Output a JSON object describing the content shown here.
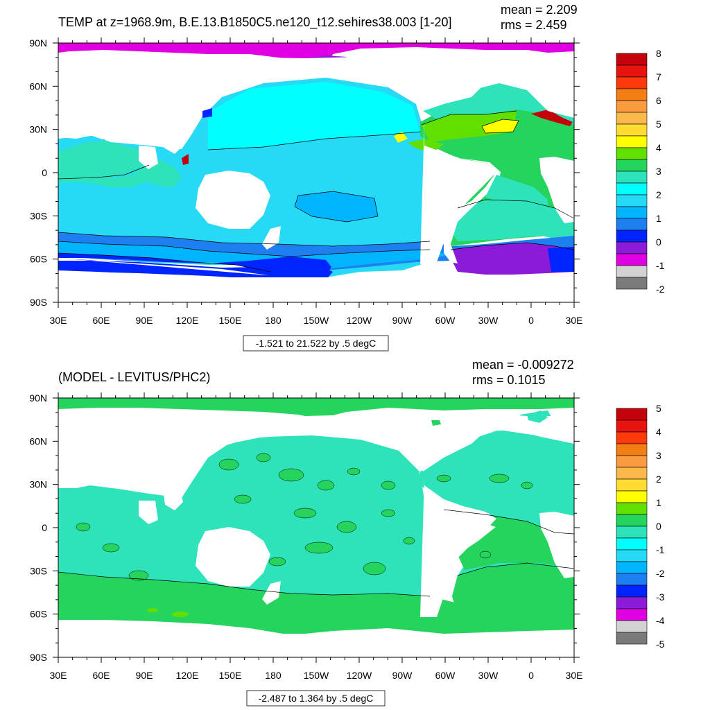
{
  "panels": [
    {
      "title": "TEMP at z=1968.9m, B.E.13.B1850C5.ne120_t12.sehires38.003 [1-20]",
      "mean_label": "mean = 2.209",
      "rms_label": "rms = 2.459",
      "contour_info": "-1.521 to 21.522 by .5 degC",
      "colorbar_labels": [
        "8",
        "7",
        "6",
        "5",
        "4",
        "3",
        "2",
        "1",
        "0",
        "-1",
        "-2"
      ],
      "colorbar_colors": [
        "#c4000a",
        "#e8130f",
        "#ff3a0a",
        "#f57e14",
        "#f99b3e",
        "#fbb94b",
        "#fedc32",
        "#ffff00",
        "#61e000",
        "#24d45c",
        "#2ee3b9",
        "#00ffff",
        "#26d9f5",
        "#00b4ff",
        "#1e80f0",
        "#0024ff",
        "#8c1ad9",
        "#e100e1",
        "#d2d2d2",
        "#7a7a7a"
      ]
    },
    {
      "title": "(MODEL - LEVITUS/PHC2)",
      "mean_label": "mean = -0.009272",
      "rms_label": "rms = 0.1015",
      "contour_info": "-2.487 to 1.364 by .5 degC",
      "colorbar_labels": [
        "5",
        "4",
        "3",
        "2",
        "1",
        "0",
        "-1",
        "-2",
        "-3",
        "-4",
        "-5"
      ],
      "colorbar_colors": [
        "#c4000a",
        "#e8130f",
        "#ff3a0a",
        "#f57e14",
        "#f99b3e",
        "#fbb94b",
        "#fedc32",
        "#ffff00",
        "#61e000",
        "#24d45c",
        "#2ee3b9",
        "#00ffff",
        "#26d9f5",
        "#00b4ff",
        "#1e80f0",
        "#0024ff",
        "#8c1ad9",
        "#e100e1",
        "#d2d2d2",
        "#7a7a7a"
      ]
    }
  ],
  "lat_labels": [
    "90N",
    "60N",
    "30N",
    "0",
    "30S",
    "60S",
    "90S"
  ],
  "lon_labels": [
    "30E",
    "60E",
    "90E",
    "120E",
    "150E",
    "180",
    "150W",
    "120W",
    "90W",
    "60W",
    "30W",
    "0",
    "30E"
  ]
}
